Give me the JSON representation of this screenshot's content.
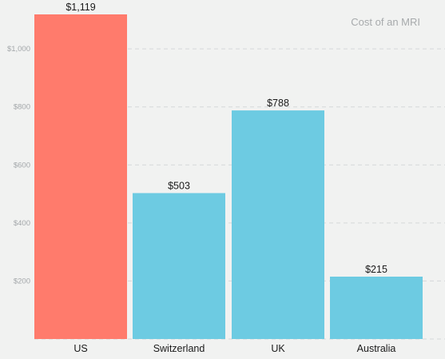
{
  "chart_data": {
    "type": "bar",
    "title": "Cost of an MRI",
    "categories": [
      "US",
      "Switzerland",
      "UK",
      "Australia"
    ],
    "values": [
      1119,
      503,
      788,
      215
    ],
    "value_labels": [
      "$1,119",
      "$503",
      "$788",
      "$215"
    ],
    "bar_colors": [
      "#ff7b6c",
      "#6dcbe2",
      "#6dcbe2",
      "#6dcbe2"
    ],
    "yticks": [
      200,
      400,
      600,
      800,
      1000
    ],
    "ytick_labels": [
      "$200",
      "$400",
      "$600",
      "$800",
      "$1,000"
    ],
    "ylim": [
      0,
      1119
    ],
    "xlabel": "",
    "ylabel": "",
    "grid": true,
    "grid_style": "dashed",
    "highlight_color": "#ff7b6c",
    "base_color": "#6dcbe2"
  }
}
